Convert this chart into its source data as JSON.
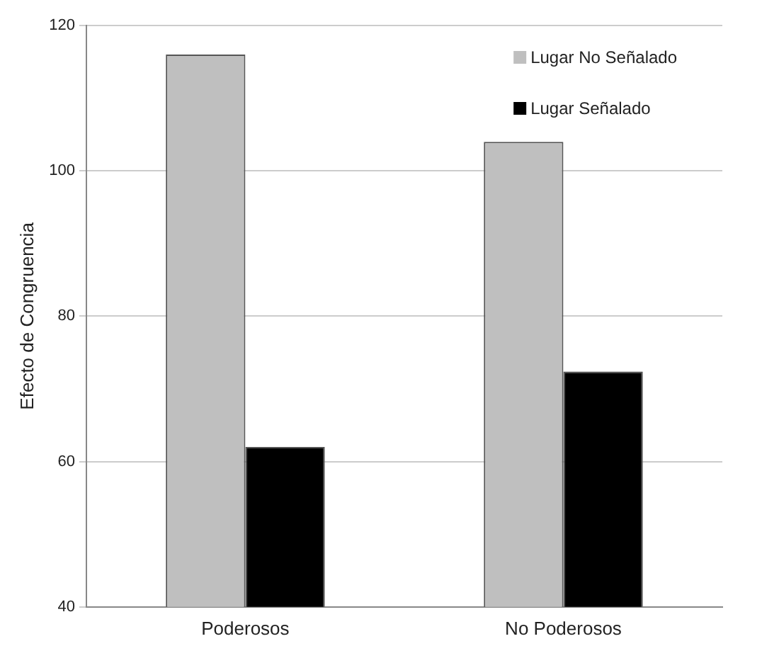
{
  "chart_data": {
    "type": "bar",
    "ylabel": "Efecto de Congruencia",
    "categories": [
      "Poderosos",
      "No Poderosos"
    ],
    "series": [
      {
        "name": "Lugar No Señalado",
        "color": "#bfbfbf",
        "values": [
          116,
          104
        ]
      },
      {
        "name": "Lugar Señalado",
        "color": "#000000",
        "values": [
          62,
          72.4
        ]
      }
    ],
    "ylim": [
      40,
      120
    ],
    "yticks": [
      40,
      60,
      80,
      100,
      120
    ],
    "grid": "y",
    "legend": "top right"
  }
}
